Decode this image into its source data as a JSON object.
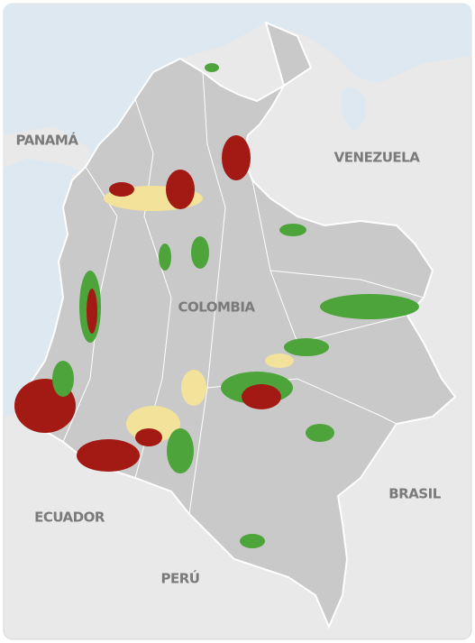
{
  "map": {
    "labels": [
      "PANAMÁ",
      "VENEZUELA",
      "COLOMBIA",
      "BRASIL",
      "ECUADOR",
      "PERÚ"
    ]
  }
}
